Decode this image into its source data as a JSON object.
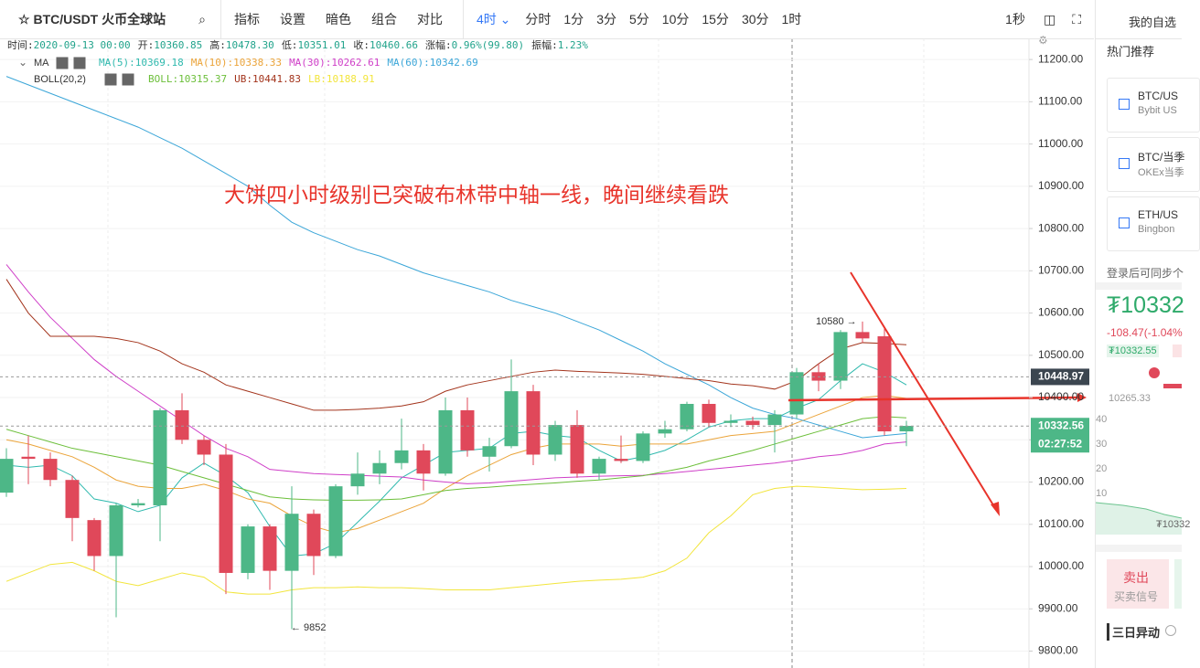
{
  "toolbar": {
    "symbol": "BTC/USDT 火币全球站",
    "tools": [
      "指标",
      "设置",
      "暗色",
      "组合",
      "对比"
    ],
    "active_period": "4时",
    "periods": [
      "分时",
      "1分",
      "3分",
      "5分",
      "10分",
      "15分",
      "30分",
      "1时"
    ],
    "seconds": "1秒"
  },
  "info": [
    [
      "时间:",
      "2020-09-13 00:00"
    ],
    [
      "开:",
      "10360.85"
    ],
    [
      "高:",
      "10478.30"
    ],
    [
      "低:",
      "10351.01"
    ],
    [
      "收:",
      "10460.66"
    ],
    [
      "涨幅:",
      "0.96%(99.80)"
    ],
    [
      "振幅:",
      "1.23%"
    ]
  ],
  "annotation": "大饼四小时级别已突破布林带中轴一线，晚间继续看跌",
  "chart_data": {
    "type": "candlestick",
    "ma_label": "MA",
    "boll_label": "BOLL(20,2)",
    "legend": [
      "MA(5):10369.18",
      "MA(10):10338.33",
      "MA(30):10262.61",
      "MA(60):10342.69",
      "BOLL:10315.37",
      "UB:10441.83",
      "LB:10188.91"
    ],
    "up_color": "#4db787",
    "down_color": "#e0485a",
    "open": [
      10175,
      10260,
      10255,
      10205,
      10110,
      10025,
      10145,
      10145,
      10370,
      10300,
      10265,
      9985,
      10095,
      9990,
      10125,
      10025,
      10190,
      10220,
      10245,
      10275,
      10220,
      10370,
      10260,
      10285,
      10415,
      10265,
      10335,
      10220,
      10255,
      10250,
      10315,
      10325,
      10385,
      10340,
      10345,
      10335,
      10360,
      10460,
      10440,
      10555,
      10545,
      10320
    ],
    "high": [
      10280,
      10310,
      10270,
      10215,
      10115,
      10150,
      10160,
      10375,
      10410,
      10310,
      10290,
      10100,
      10100,
      10190,
      10135,
      10195,
      10270,
      10275,
      10350,
      10290,
      10400,
      10400,
      10305,
      10490,
      10430,
      10345,
      10370,
      10260,
      10310,
      10320,
      10345,
      10390,
      10395,
      10360,
      10355,
      10370,
      10470,
      10480,
      10560,
      10580,
      10565,
      10345
    ],
    "low": [
      10165,
      10195,
      10190,
      10060,
      9990,
      9880,
      10140,
      10060,
      10290,
      10240,
      9935,
      9970,
      9945,
      9852,
      9980,
      10020,
      10170,
      10195,
      10230,
      10180,
      10215,
      10260,
      10225,
      10280,
      10240,
      10250,
      10210,
      10205,
      10245,
      10245,
      10305,
      10320,
      10330,
      10330,
      10325,
      10270,
      10350,
      10415,
      10420,
      10530,
      10310,
      10285
    ],
    "close": [
      10255,
      10255,
      10205,
      10115,
      10025,
      10145,
      10150,
      10370,
      10300,
      10265,
      9985,
      10095,
      9990,
      10125,
      10025,
      10190,
      10220,
      10245,
      10275,
      10220,
      10370,
      10275,
      10285,
      10415,
      10265,
      10335,
      10220,
      10255,
      10250,
      10315,
      10325,
      10385,
      10340,
      10345,
      10335,
      10360,
      10460,
      10440,
      10555,
      10540,
      10320,
      10333
    ],
    "lines": [
      {
        "color": "#2fb9ae",
        "values": [
          10240,
          10235,
          10240,
          10215,
          10160,
          10150,
          10130,
          10145,
          10210,
          10245,
          10215,
          10175,
          10095,
          10025,
          10030,
          10055,
          10105,
          10155,
          10210,
          10240,
          10270,
          10275,
          10280,
          10315,
          10320,
          10310,
          10305,
          10275,
          10250,
          10260,
          10275,
          10300,
          10330,
          10345,
          10350,
          10350,
          10375,
          10395,
          10440,
          10480,
          10460,
          10430
        ]
      },
      {
        "color": "#eba43a",
        "values": [
          10300,
          10290,
          10275,
          10260,
          10235,
          10205,
          10190,
          10185,
          10185,
          10195,
          10180,
          10160,
          10150,
          10120,
          10095,
          10080,
          10090,
          10110,
          10130,
          10150,
          10185,
          10215,
          10240,
          10265,
          10280,
          10290,
          10290,
          10290,
          10285,
          10290,
          10290,
          10290,
          10300,
          10310,
          10315,
          10320,
          10340,
          10360,
          10380,
          10400,
          10405,
          10398
        ]
      },
      {
        "color": "#cf3fc8",
        "values": [
          10715,
          10650,
          10590,
          10540,
          10490,
          10450,
          10415,
          10380,
          10345,
          10310,
          10280,
          10260,
          10230,
          10225,
          10220,
          10218,
          10216,
          10214,
          10212,
          10205,
          10200,
          10196,
          10198,
          10202,
          10206,
          10210,
          10212,
          10214,
          10215,
          10216,
          10220,
          10225,
          10230,
          10235,
          10240,
          10245,
          10252,
          10260,
          10265,
          10275,
          10290,
          10295
        ]
      },
      {
        "color": "#3ba6d8",
        "values": [
          11160,
          11140,
          11120,
          11100,
          11080,
          11060,
          11040,
          11015,
          10990,
          10960,
          10930,
          10900,
          10855,
          10815,
          10790,
          10770,
          10750,
          10735,
          10715,
          10695,
          10680,
          10665,
          10650,
          10630,
          10615,
          10600,
          10580,
          10560,
          10535,
          10510,
          10480,
          10455,
          10430,
          10400,
          10375,
          10360,
          10350,
          10335,
          10320,
          10305,
          10310,
          10315
        ]
      },
      {
        "color": "#6cbf3a",
        "values": [
          10325,
          10310,
          10295,
          10280,
          10270,
          10260,
          10250,
          10240,
          10225,
          10210,
          10195,
          10180,
          10165,
          10160,
          10158,
          10157,
          10157,
          10158,
          10160,
          10170,
          10180,
          10185,
          10188,
          10192,
          10195,
          10198,
          10202,
          10205,
          10210,
          10215,
          10225,
          10235,
          10250,
          10262,
          10275,
          10290,
          10305,
          10320,
          10335,
          10350,
          10355,
          10352
        ]
      },
      {
        "color": "#a3341c",
        "values": [
          10680,
          10600,
          10545,
          10545,
          10545,
          10540,
          10530,
          10510,
          10480,
          10460,
          10430,
          10415,
          10400,
          10385,
          10370,
          10370,
          10372,
          10375,
          10380,
          10390,
          10415,
          10430,
          10440,
          10450,
          10460,
          10465,
          10462,
          10460,
          10458,
          10455,
          10450,
          10445,
          10440,
          10432,
          10428,
          10420,
          10440,
          10480,
          10515,
          10530,
          10528,
          10525
        ]
      },
      {
        "color": "#f2e53c",
        "values": [
          9965,
          9985,
          10005,
          10010,
          9990,
          9965,
          9955,
          9970,
          9985,
          9975,
          9940,
          9935,
          9935,
          9945,
          9950,
          9950,
          9952,
          9950,
          9950,
          9948,
          9945,
          9945,
          9945,
          9950,
          9955,
          9960,
          9965,
          9968,
          9970,
          9975,
          9990,
          10020,
          10080,
          10120,
          10170,
          10185,
          10190,
          10188,
          10185,
          10182,
          10183,
          10185
        ]
      }
    ],
    "ylim": [
      9760,
      11250
    ],
    "yticks": [
      {
        "value": 9800,
        "label": "9800.00"
      },
      {
        "value": 9900,
        "label": "9900.00"
      },
      {
        "value": 10000,
        "label": "10000.00"
      },
      {
        "value": 10100,
        "label": "10100.00"
      },
      {
        "value": 10200,
        "label": "10200.00"
      },
      {
        "value": 10300,
        "label": "10300.00"
      },
      {
        "value": 10400,
        "label": "10400.00"
      },
      {
        "value": 10500,
        "label": "10500.00"
      },
      {
        "value": 10600,
        "label": "10600.00"
      },
      {
        "value": 10700,
        "label": "10700.00"
      },
      {
        "value": 10800,
        "label": "10800.00"
      },
      {
        "value": 10900,
        "label": "10900.00"
      },
      {
        "value": 11000,
        "label": "11000.00"
      },
      {
        "value": 11100,
        "label": "11100.00"
      },
      {
        "value": 11200,
        "label": "11200.00"
      }
    ],
    "grid": true,
    "price_tags": [
      {
        "value": 10448.97,
        "color": "#3c4650"
      },
      {
        "value": 10332.56,
        "color": "#4db787"
      }
    ],
    "countdown": "02:27:52",
    "max_label": "10580 →",
    "min_label": "← 9852"
  },
  "sidebar": {
    "title": "我的自选",
    "hot": "热门推荐",
    "items": [
      {
        "name": "BTC/US",
        "source": "Bybit US"
      },
      {
        "name": "BTC/当季",
        "source": "OKEx当季"
      },
      {
        "name": "ETH/US",
        "source": "Bingbon"
      }
    ],
    "login": "登录后可同步个",
    "price": "₮10332",
    "change": "-108.47(-1.04%",
    "price_small": "₮10332.55",
    "low": "10265.33",
    "mini_ticks": [
      "40",
      "30",
      "20",
      "10"
    ],
    "mini_price": "₮10332",
    "sell": "卖出",
    "signal": "买卖信号",
    "section": "三日异动"
  }
}
